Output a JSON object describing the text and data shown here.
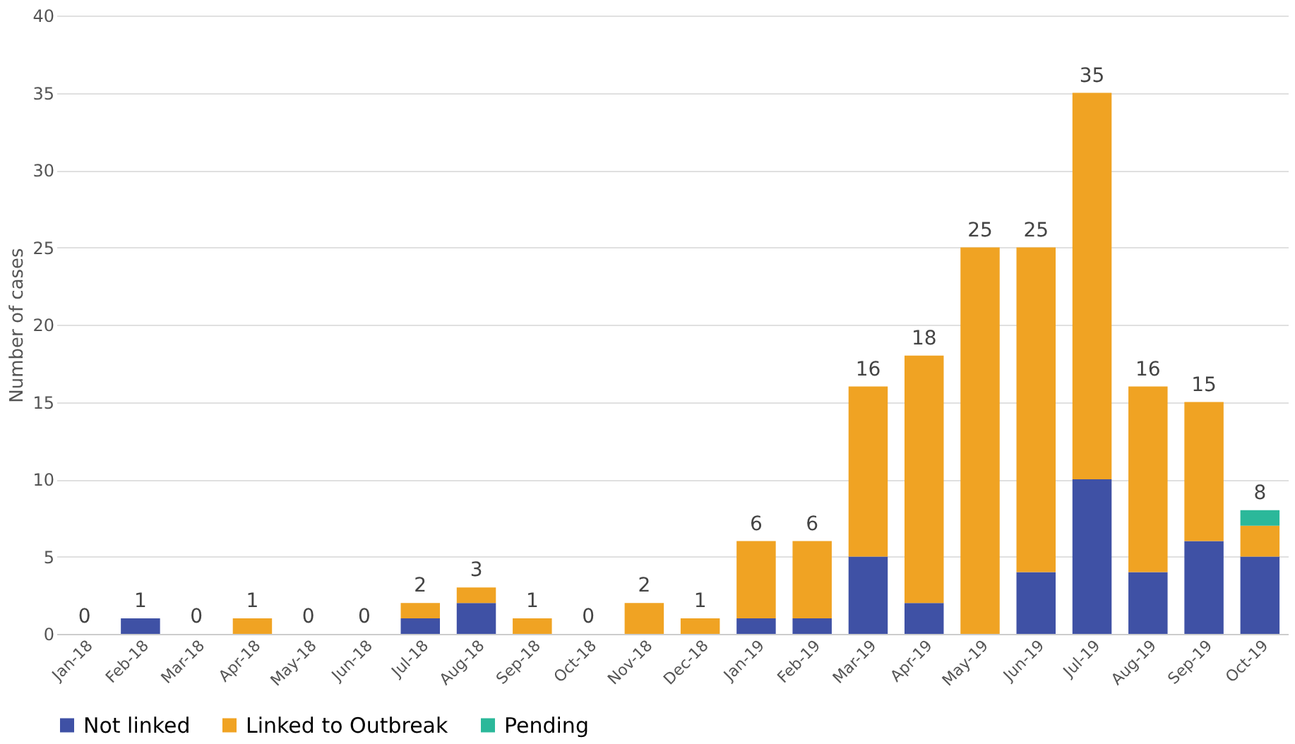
{
  "chart_data": {
    "type": "bar",
    "stacked": true,
    "ylabel": "Number of cases",
    "categories": [
      "Jan-18",
      "Feb-18",
      "Mar-18",
      "Apr-18",
      "May-18",
      "Jun-18",
      "Jul-18",
      "Aug-18",
      "Sep-18",
      "Oct-18",
      "Nov-18",
      "Dec-18",
      "Jan-19",
      "Feb-19",
      "Mar-19",
      "Apr-19",
      "May-19",
      "Jun-19",
      "Jul-19",
      "Aug-19",
      "Sep-19",
      "Oct-19"
    ],
    "series": [
      {
        "name": "Not linked",
        "color": "#3f51a5",
        "values": [
          0,
          1,
          0,
          0,
          0,
          0,
          1,
          2,
          0,
          0,
          0,
          0,
          1,
          1,
          5,
          2,
          0,
          4,
          10,
          4,
          6,
          5
        ]
      },
      {
        "name": "Linked to Outbreak",
        "color": "#f0a323",
        "values": [
          0,
          0,
          0,
          1,
          0,
          0,
          1,
          1,
          1,
          0,
          2,
          1,
          5,
          5,
          11,
          16,
          25,
          21,
          25,
          12,
          9,
          2
        ]
      },
      {
        "name": "Pending",
        "color": "#2bb89a",
        "values": [
          0,
          0,
          0,
          0,
          0,
          0,
          0,
          0,
          0,
          0,
          0,
          0,
          0,
          0,
          0,
          0,
          0,
          0,
          0,
          0,
          0,
          1
        ]
      }
    ],
    "totals": [
      "0",
      "1",
      "0",
      "1",
      "0",
      "0",
      "2",
      "3",
      "1",
      "0",
      "2",
      "1",
      "6",
      "6",
      "16",
      "18",
      "25",
      "25",
      "35",
      "16",
      "15",
      "8"
    ],
    "ylim": [
      0,
      40
    ],
    "yticks": [
      0,
      5,
      10,
      15,
      20,
      25,
      30,
      35,
      40
    ],
    "grid": "y",
    "legend": "bottom"
  }
}
